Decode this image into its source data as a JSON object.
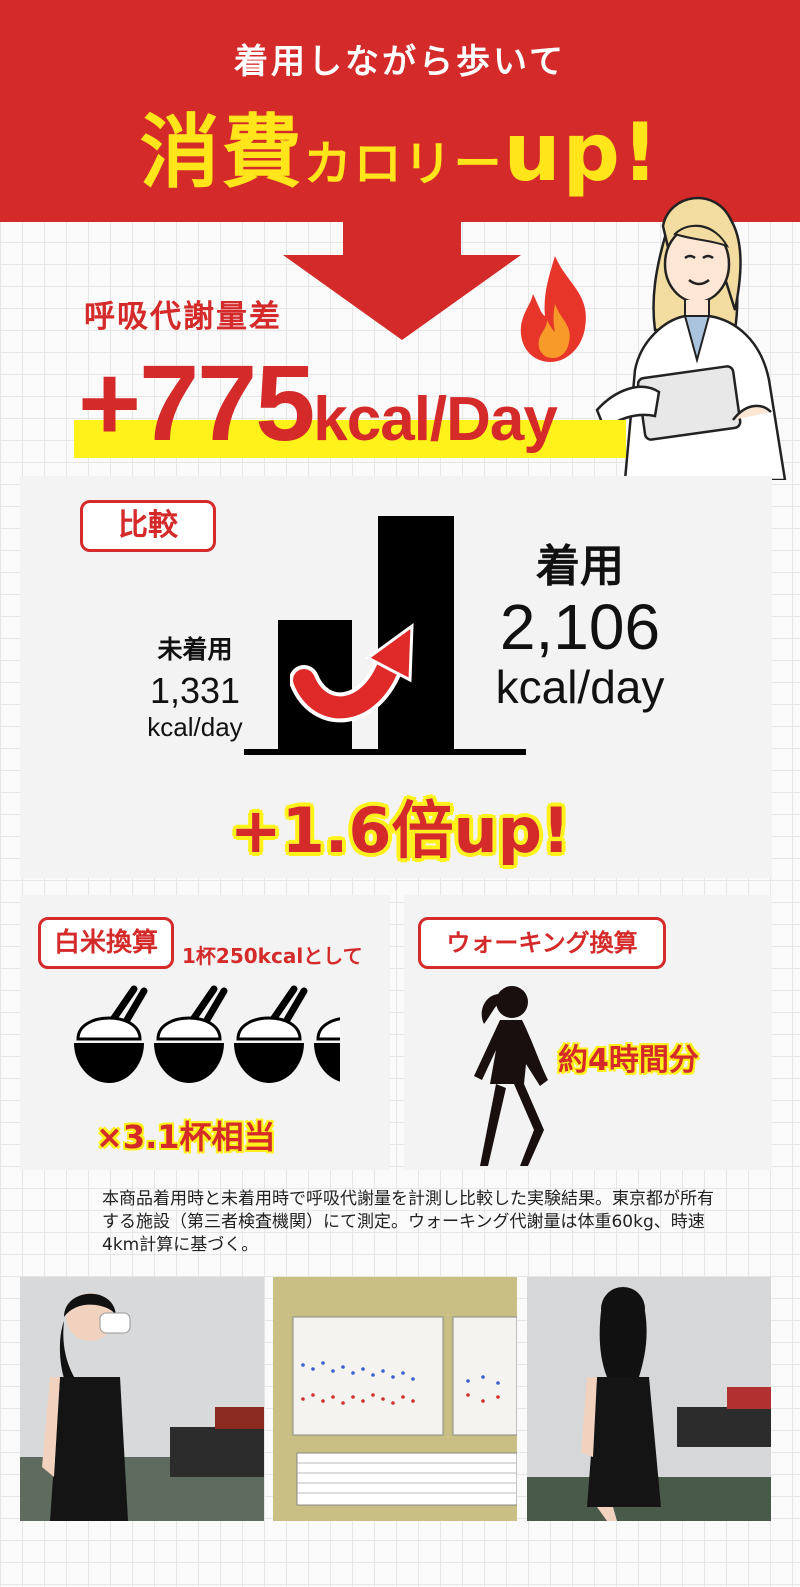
{
  "header": {
    "subtitle": "着用しながら歩いて",
    "headline_big": "消費",
    "headline_mid": "カロリー",
    "headline_up": "up!"
  },
  "metabolism": {
    "label": "呼吸代謝量差",
    "value": "+775",
    "unit": "kcal/Day"
  },
  "comparison": {
    "tag": "比較",
    "not_wearing": {
      "label": "未着用",
      "value": "1,331",
      "unit": "kcal/day"
    },
    "wearing": {
      "label": "着用",
      "value": "2,106",
      "unit": "kcal/day"
    },
    "result": "+1.6倍up!"
  },
  "rice": {
    "tag": "白米換算",
    "note": "1杯250kcalとして",
    "equivalent": "×3.1杯相当"
  },
  "walking": {
    "tag": "ウォーキング換算",
    "equivalent": "約4時間分"
  },
  "footnote": "本商品着用時と未着用時で呼吸代謝量を計測し比較した実験結果。東京都が所有する施設（第三者検査機関）にて測定。ウォーキング代謝量は体重60kg、時速4km計算に基づく。",
  "colors": {
    "red": "#d42a2a",
    "yellow": "#ffe51a",
    "highlight": "#fff21a"
  }
}
